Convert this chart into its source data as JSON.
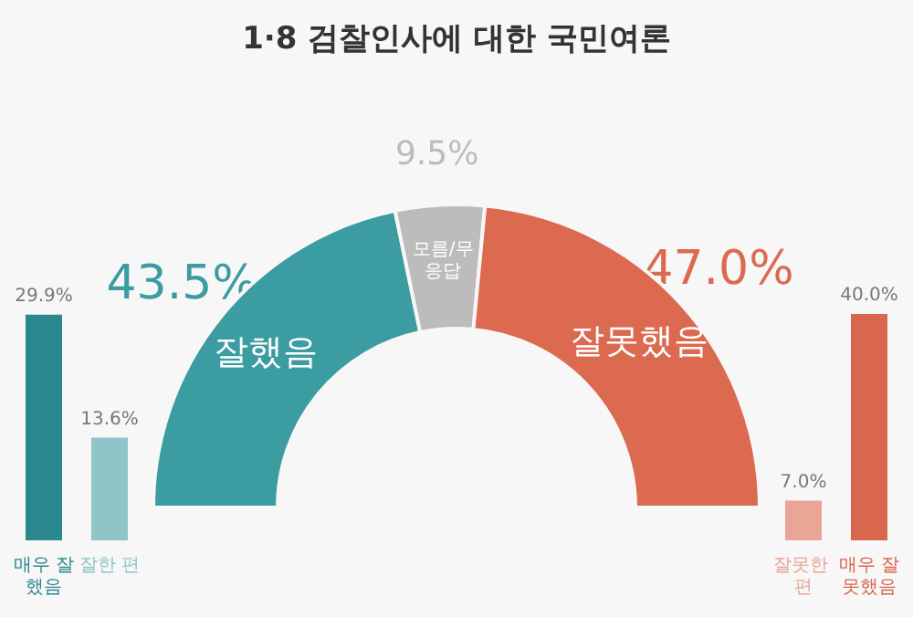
{
  "chart_data": [
    {
      "type": "donut",
      "title": "1·8 검찰인사에 대한 국민여론",
      "categories": [
        "잘했음",
        "모름/무응답",
        "잘못했음"
      ],
      "values": [
        43.5,
        9.5,
        47.0
      ],
      "value_labels": [
        "43.5%",
        "9.5%",
        "47.0%"
      ],
      "colors": [
        "#3b9ca2",
        "#bdbcbc",
        "#dc6a50"
      ]
    },
    {
      "type": "bar",
      "categories": [
        "매우 잘했음",
        "잘한 편"
      ],
      "values": [
        29.9,
        13.6
      ],
      "value_labels": [
        "29.9%",
        "13.6%"
      ],
      "colors": [
        "#2b888e",
        "#8fc4c8"
      ]
    },
    {
      "type": "bar",
      "categories": [
        "잘못한 편",
        "매우 잘못했음"
      ],
      "values": [
        7.0,
        40.0
      ],
      "value_labels": [
        "7.0%",
        "40.0%"
      ],
      "colors": [
        "#eaa596",
        "#d9674d"
      ]
    }
  ]
}
